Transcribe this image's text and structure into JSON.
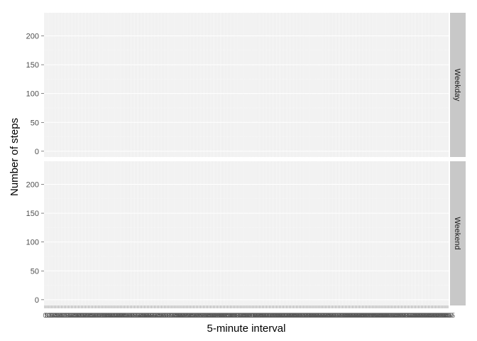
{
  "chart_data": {
    "type": "line",
    "layout": "facet-rows",
    "xlabel": "5-minute interval",
    "ylabel": "Number of steps",
    "ylim": [
      -10,
      240
    ],
    "yticks": [
      0,
      50,
      100,
      150,
      200
    ],
    "x_categories": [
      "0",
      "5",
      "10",
      "15",
      "20",
      "25",
      "30",
      "35",
      "40",
      "45",
      "50",
      "55",
      "100",
      "105",
      "110",
      "115",
      "120",
      "125",
      "130",
      "135",
      "140",
      "145",
      "150",
      "155",
      "200",
      "205",
      "210",
      "215",
      "220",
      "225",
      "230",
      "235",
      "240",
      "245",
      "250",
      "255",
      "300",
      "305",
      "310",
      "315",
      "320",
      "325",
      "330",
      "335",
      "340",
      "345",
      "350",
      "355",
      "400",
      "405",
      "410",
      "415",
      "420",
      "425",
      "430",
      "435",
      "440",
      "445",
      "450",
      "455",
      "500",
      "505",
      "510",
      "515",
      "520",
      "525",
      "530",
      "535",
      "540",
      "545",
      "550",
      "555",
      "600",
      "605",
      "610",
      "615",
      "620",
      "625",
      "630",
      "635",
      "640",
      "645",
      "650",
      "655",
      "700",
      "705",
      "710",
      "715",
      "720",
      "725",
      "730",
      "735",
      "740",
      "745",
      "750",
      "755",
      "800",
      "805",
      "810",
      "815",
      "820",
      "825",
      "830",
      "835",
      "840",
      "845",
      "850",
      "855",
      "900",
      "905",
      "910",
      "915",
      "920",
      "925",
      "930",
      "935",
      "940",
      "945",
      "950",
      "955",
      "1000",
      "1005",
      "1010",
      "1015",
      "1020",
      "1025",
      "1030",
      "1035",
      "1040",
      "1045",
      "1050",
      "1055",
      "1100",
      "1105",
      "1110",
      "1115",
      "1120",
      "1125",
      "1130",
      "1135",
      "1140",
      "1145",
      "1150",
      "1155",
      "1200",
      "1205",
      "1210",
      "1215",
      "1220",
      "1225",
      "1230",
      "1235",
      "1240",
      "1245",
      "1250",
      "1255",
      "1300",
      "1305",
      "1310",
      "1315",
      "1320",
      "1325",
      "1330",
      "1335",
      "1340",
      "1345",
      "1350",
      "1355",
      "1400",
      "1405",
      "1410",
      "1415",
      "1420",
      "1425",
      "1430",
      "1435",
      "1440",
      "1445",
      "1450",
      "1455",
      "1500",
      "1505",
      "1510",
      "1515",
      "1520",
      "1525",
      "1530",
      "1535",
      "1540",
      "1545",
      "1550",
      "1555",
      "1600",
      "1605",
      "1610",
      "1615",
      "1620",
      "1625",
      "1630",
      "1635",
      "1640",
      "1645",
      "1650",
      "1655",
      "1700",
      "1705",
      "1710",
      "1715",
      "1720",
      "1725",
      "1730",
      "1735",
      "1740",
      "1745",
      "1750",
      "1755",
      "1800",
      "1805",
      "1810",
      "1815",
      "1820",
      "1825",
      "1830",
      "1835",
      "1840",
      "1845",
      "1850",
      "1855",
      "1900",
      "1905",
      "1910",
      "1915",
      "1920",
      "1925",
      "1930",
      "1935",
      "1940",
      "1945",
      "1950",
      "1955",
      "2000",
      "2005",
      "2010",
      "2015",
      "2020",
      "2025",
      "2030",
      "2035",
      "2040",
      "2045",
      "2050",
      "2055",
      "2100",
      "2105",
      "2110",
      "2115",
      "2120",
      "2125",
      "2130",
      "2135",
      "2140",
      "2145",
      "2150",
      "2155",
      "2200",
      "2205",
      "2210",
      "2215",
      "2220",
      "2225",
      "2230",
      "2235",
      "2240",
      "2245",
      "2250",
      "2255",
      "2300",
      "2305",
      "2310",
      "2315",
      "2320",
      "2325",
      "2330",
      "2335",
      "2340",
      "2345",
      "2350",
      "2355"
    ],
    "facets": [
      {
        "label": "Weekday",
        "series": []
      },
      {
        "label": "Weekend",
        "series": []
      }
    ],
    "grid": true,
    "legend": "none",
    "colors": {
      "panel_bg": "#ebebeb",
      "grid_major": "#ffffff",
      "grid_minor": "#f2f2f2",
      "strip_bg": "#c8c8c8",
      "tick_text": "#4d4d4d"
    }
  }
}
